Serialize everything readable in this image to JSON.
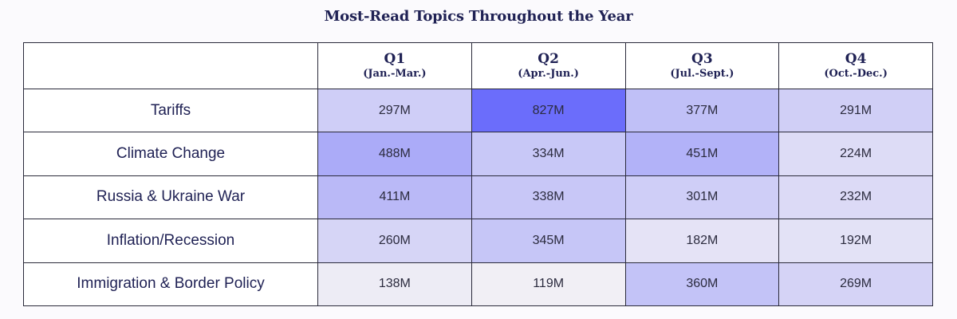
{
  "chart_data": {
    "type": "heatmap",
    "title": "Most-Read Topics Throughout the Year",
    "columns": [
      {
        "label": "Q1",
        "range": "(Jan.-Mar.)"
      },
      {
        "label": "Q2",
        "range": "(Apr.-Jun.)"
      },
      {
        "label": "Q3",
        "range": "(Jul.-Sept.)"
      },
      {
        "label": "Q4",
        "range": "(Oct.-Dec.)"
      }
    ],
    "rows": [
      {
        "label": "Tariffs",
        "values": [
          297,
          827,
          377,
          291
        ]
      },
      {
        "label": "Climate Change",
        "values": [
          488,
          334,
          451,
          224
        ]
      },
      {
        "label": "Russia & Ukraine War",
        "values": [
          411,
          338,
          301,
          232
        ]
      },
      {
        "label": "Inflation/Recession",
        "values": [
          260,
          345,
          182,
          192
        ]
      },
      {
        "label": "Immigration & Border Policy",
        "values": [
          138,
          119,
          360,
          269
        ]
      }
    ],
    "value_suffix": "M",
    "color_low": "#f1eff5",
    "color_high": "#6b6dfb"
  }
}
